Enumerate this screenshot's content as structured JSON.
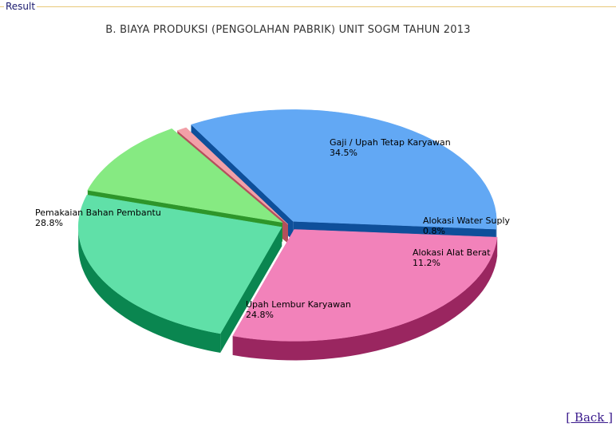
{
  "panel": {
    "legend": "Result"
  },
  "chart_data": {
    "type": "pie",
    "title": "B. BIAYA PRODUKSI (PENGOLAHAN PABRIK)  UNIT   SOGM TAHUN 2013",
    "three_d": true,
    "slices": [
      {
        "label": "Gaji / Upah Tetap Karyawan",
        "value": 34.5,
        "display": "34.5%",
        "color": "#62a8f4",
        "side_color": "#0e4f9a"
      },
      {
        "label": "Alokasi Water Suply",
        "value": 0.8,
        "display": "0.8%",
        "color": "#f2a0a8",
        "side_color": "#b4505c"
      },
      {
        "label": "Alokasi Alat Berat",
        "value": 11.2,
        "display": "11.2%",
        "color": "#86ea82",
        "side_color": "#2e962a"
      },
      {
        "label": "Upah Lembur Karyawan",
        "value": 24.8,
        "display": "24.8%",
        "color": "#60e0a8",
        "side_color": "#0a8650"
      },
      {
        "label": "Pemakaian Bahan Pembantu",
        "value": 28.8,
        "display": "28.8%",
        "color": "#f282ba",
        "side_color": "#9a2660"
      }
    ]
  },
  "footer": {
    "back_label": "[ Back ]"
  }
}
